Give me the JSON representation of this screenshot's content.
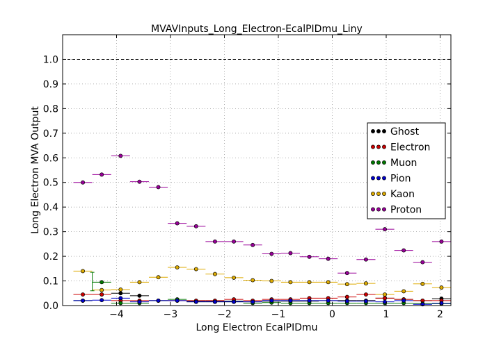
{
  "chart_data": {
    "type": "scatter",
    "title": "MVAVInputs_Long_Electron-EcalPIDmu_Liny",
    "xlabel": "Long Electron EcalPIDmu",
    "ylabel": "Long Electron MVA Output",
    "xlim": [
      -5.0,
      2.2
    ],
    "ylim": [
      0.0,
      1.1
    ],
    "xticks": [
      -4,
      -3,
      -2,
      -1,
      0,
      1,
      2
    ],
    "xtick_labels": [
      "−4",
      "−3",
      "−2",
      "−1",
      "0",
      "1",
      "2"
    ],
    "yticks": [
      0.0,
      0.1,
      0.2,
      0.3,
      0.4,
      0.5,
      0.6,
      0.7,
      0.8,
      0.9,
      1.0
    ],
    "ytick_labels": [
      "0.0",
      "0.1",
      "0.2",
      "0.3",
      "0.4",
      "0.5",
      "0.6",
      "0.7",
      "0.8",
      "0.9",
      "1.0"
    ],
    "grid": true,
    "reference_line": 1.0,
    "legend_position": "right",
    "x": [
      -4.8,
      -4.45,
      -4.1,
      -3.75,
      -3.4,
      -3.05,
      -2.7,
      -2.35,
      -2.0,
      -1.65,
      -1.3,
      -0.95,
      -0.6,
      -0.25,
      0.1,
      0.45,
      0.8,
      1.15,
      1.5,
      1.85,
      2.2
    ],
    "series": [
      {
        "name": "Ghost",
        "color": "#000000",
        "values": [
          0.02,
          0.045,
          0.05,
          0.04,
          0.02,
          0.02,
          0.018,
          0.018,
          0.018,
          0.015,
          0.018,
          0.018,
          0.018,
          0.02,
          0.02,
          0.02,
          0.03,
          0.025,
          0.02,
          0.028,
          0.03
        ]
      },
      {
        "name": "Electron",
        "color": "#cc0000",
        "values": [
          0.045,
          0.045,
          0.02,
          0.02,
          0.02,
          0.02,
          0.02,
          0.02,
          0.025,
          0.02,
          0.025,
          0.025,
          0.03,
          0.03,
          0.035,
          0.045,
          0.03,
          0.025,
          0.02,
          0.02,
          0.02
        ]
      },
      {
        "name": "Muon",
        "color": "#007700",
        "values": [
          0.02,
          0.095,
          0.01,
          0.01,
          0.02,
          0.025,
          0.015,
          0.015,
          0.015,
          0.01,
          0.012,
          0.01,
          0.01,
          0.01,
          0.01,
          0.01,
          0.01,
          0.01,
          0.008,
          0.008,
          0.008
        ]
      },
      {
        "name": "Pion",
        "color": "#0000cc",
        "values": [
          0.02,
          0.022,
          0.03,
          0.015,
          0.02,
          0.02,
          0.015,
          0.015,
          0.015,
          0.015,
          0.02,
          0.02,
          0.02,
          0.02,
          0.018,
          0.018,
          0.015,
          0.02,
          0.005,
          0.01,
          0.01
        ]
      },
      {
        "name": "Kaon",
        "color": "#ddaa00",
        "values": [
          0.14,
          0.063,
          0.065,
          0.095,
          0.115,
          0.155,
          0.148,
          0.128,
          0.113,
          0.103,
          0.1,
          0.095,
          0.095,
          0.095,
          0.087,
          0.09,
          0.045,
          0.058,
          0.088,
          0.073,
          0.073
        ]
      },
      {
        "name": "Proton",
        "color": "#990099",
        "values": [
          0.5,
          0.532,
          0.608,
          0.503,
          0.481,
          0.334,
          0.322,
          0.26,
          0.26,
          0.246,
          0.21,
          0.213,
          0.198,
          0.19,
          0.132,
          0.187,
          0.31,
          0.224,
          0.176,
          0.26,
          0.26
        ]
      }
    ],
    "error_bars": [
      {
        "series": "Muon",
        "x": -4.45,
        "low": 0.06,
        "high": 0.135
      }
    ]
  }
}
